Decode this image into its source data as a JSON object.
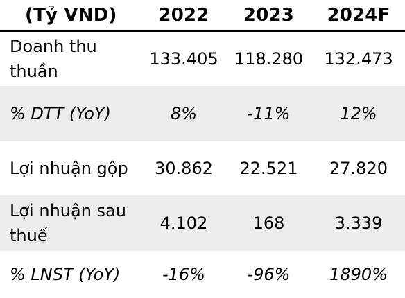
{
  "header": {
    "unit": "(Tỷ VND)",
    "years": [
      "2022",
      "2023",
      "2024F"
    ]
  },
  "rows": [
    {
      "label": "Doanh thu thuần",
      "values": [
        "133.405",
        "118.280",
        "132.473"
      ]
    },
    {
      "label": "% DTT (YoY)",
      "values": [
        "8%",
        "-11%",
        "12%"
      ]
    },
    {
      "label": "Lợi nhuận gộp",
      "values": [
        "30.862",
        "22.521",
        "27.820"
      ]
    },
    {
      "label": "Lợi nhuận sau thuế",
      "values": [
        "4.102",
        "168",
        "3.339"
      ]
    },
    {
      "label": "% LNST (YoY)",
      "values": [
        "-16%",
        "-96%",
        "1890%"
      ]
    }
  ],
  "colors": {
    "shade": "#ececec",
    "text": "#000000",
    "background": "#ffffff"
  }
}
